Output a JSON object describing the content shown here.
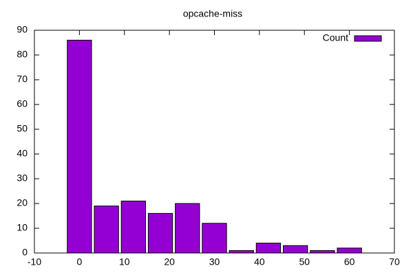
{
  "chart_data": {
    "type": "bar",
    "title": "opcache-miss",
    "x": [
      0,
      6,
      12,
      18,
      24,
      30,
      36,
      42,
      48,
      54,
      60
    ],
    "series": [
      {
        "name": "Count",
        "color": "#9400d3",
        "values": [
          86,
          19,
          21,
          16,
          20,
          12,
          1,
          4,
          3,
          1,
          2
        ]
      }
    ],
    "xlim": [
      -10,
      70
    ],
    "xticks": [
      -10,
      0,
      10,
      20,
      30,
      40,
      50,
      60,
      70
    ],
    "ylim": [
      0,
      90
    ],
    "yticks": [
      0,
      10,
      20,
      30,
      40,
      50,
      60,
      70,
      80,
      90
    ],
    "grid": false,
    "legend": "top-right"
  }
}
